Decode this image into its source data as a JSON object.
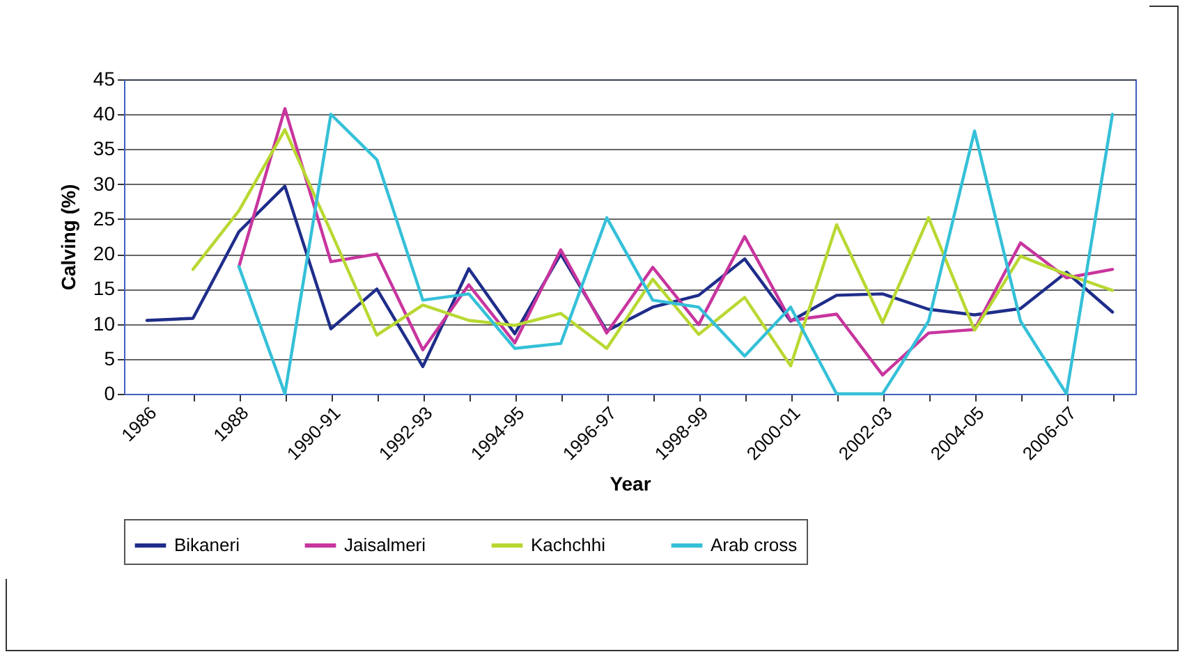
{
  "chart_data": {
    "type": "line",
    "xlabel": "Year",
    "ylabel": "Calving (%)",
    "categories": [
      "1986",
      null,
      "1988",
      null,
      "1990-91",
      null,
      "1992-93",
      null,
      "1994-95",
      null,
      "1996-97",
      null,
      "1998-99",
      null,
      "2000-01",
      null,
      "2002-03",
      null,
      "2004-05",
      null,
      "2006-07",
      null
    ],
    "series": [
      {
        "name": "Bikaneri",
        "color": "#1f2d8a",
        "values": [
          10.5,
          10.8,
          23.2,
          29.7,
          9.3,
          15,
          3.9,
          17.9,
          8.6,
          20,
          9,
          12.4,
          14.1,
          19.3,
          10.4,
          14.1,
          14.3,
          12.1,
          11.3,
          12.2,
          17.4,
          11.7
        ]
      },
      {
        "name": "Jaisalmeri",
        "color": "#c8359e",
        "values": [
          null,
          null,
          18.2,
          40.8,
          18.9,
          20,
          6.3,
          15.6,
          7.3,
          20.6,
          8.7,
          18.1,
          9.9,
          22.5,
          10.5,
          11.4,
          2.7,
          8.7,
          9.2,
          21.6,
          16.6,
          17.8
        ]
      },
      {
        "name": "Kachchhi",
        "color": "#b8d832",
        "values": [
          null,
          17.8,
          26.2,
          37.8,
          23.2,
          8.4,
          12.7,
          10.5,
          9.8,
          11.5,
          6.5,
          16.4,
          8.5,
          13.8,
          4,
          24.2,
          10.2,
          25.2,
          9.1,
          19.7,
          17.1,
          14.8
        ]
      },
      {
        "name": "Arab cross",
        "color": "#35c0d8",
        "values": [
          null,
          null,
          18.2,
          0,
          40,
          33.5,
          13.4,
          14.3,
          6.5,
          7.2,
          25.2,
          13.4,
          12.4,
          5.4,
          12.4,
          0,
          0,
          10.4,
          37.6,
          10.4,
          0,
          40
        ]
      }
    ],
    "ylim": [
      0,
      45
    ],
    "yticks": [
      0,
      5,
      10,
      15,
      20,
      25,
      30,
      35,
      40,
      45
    ],
    "grid": "y",
    "legend": "bottom"
  }
}
